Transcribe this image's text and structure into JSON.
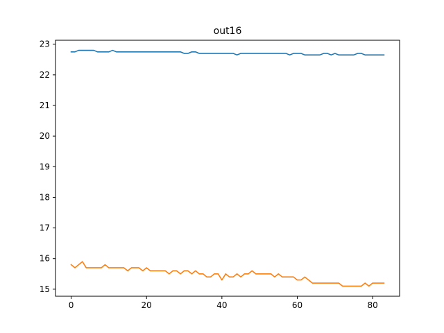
{
  "chart_data": {
    "type": "line",
    "title": "out16",
    "xlabel": "",
    "ylabel": "",
    "xlim": [
      -4.15,
      87.15
    ],
    "ylim": [
      14.77,
      23.13
    ],
    "xticks": [
      0,
      20,
      40,
      60,
      80
    ],
    "yticks": [
      15,
      16,
      17,
      18,
      19,
      20,
      21,
      22,
      23
    ],
    "grid": false,
    "legend": "none",
    "series": [
      {
        "color": "#1f77b4",
        "x": [
          0,
          1,
          2,
          3,
          4,
          5,
          6,
          7,
          8,
          9,
          10,
          11,
          12,
          13,
          14,
          15,
          16,
          17,
          18,
          19,
          20,
          21,
          22,
          23,
          24,
          25,
          26,
          27,
          28,
          29,
          30,
          31,
          32,
          33,
          34,
          35,
          36,
          37,
          38,
          39,
          40,
          41,
          42,
          43,
          44,
          45,
          46,
          47,
          48,
          49,
          50,
          51,
          52,
          53,
          54,
          55,
          56,
          57,
          58,
          59,
          60,
          61,
          62,
          63,
          64,
          65,
          66,
          67,
          68,
          69,
          70,
          71,
          72,
          73,
          74,
          75,
          76,
          77,
          78,
          79,
          80,
          81,
          82,
          83
        ],
        "values": [
          22.75,
          22.75,
          22.8,
          22.8,
          22.8,
          22.8,
          22.8,
          22.75,
          22.75,
          22.75,
          22.75,
          22.8,
          22.75,
          22.75,
          22.75,
          22.75,
          22.75,
          22.75,
          22.75,
          22.75,
          22.75,
          22.75,
          22.75,
          22.75,
          22.75,
          22.75,
          22.75,
          22.75,
          22.75,
          22.75,
          22.7,
          22.7,
          22.75,
          22.75,
          22.7,
          22.7,
          22.7,
          22.7,
          22.7,
          22.7,
          22.7,
          22.7,
          22.7,
          22.7,
          22.65,
          22.7,
          22.7,
          22.7,
          22.7,
          22.7,
          22.7,
          22.7,
          22.7,
          22.7,
          22.7,
          22.7,
          22.7,
          22.7,
          22.65,
          22.7,
          22.7,
          22.7,
          22.65,
          22.65,
          22.65,
          22.65,
          22.65,
          22.7,
          22.7,
          22.65,
          22.7,
          22.65,
          22.65,
          22.65,
          22.65,
          22.65,
          22.7,
          22.7,
          22.65,
          22.65,
          22.65,
          22.65,
          22.65,
          22.65
        ]
      },
      {
        "color": "#ff7f0e",
        "x": [
          0,
          1,
          2,
          3,
          4,
          5,
          6,
          7,
          8,
          9,
          10,
          11,
          12,
          13,
          14,
          15,
          16,
          17,
          18,
          19,
          20,
          21,
          22,
          23,
          24,
          25,
          26,
          27,
          28,
          29,
          30,
          31,
          32,
          33,
          34,
          35,
          36,
          37,
          38,
          39,
          40,
          41,
          42,
          43,
          44,
          45,
          46,
          47,
          48,
          49,
          50,
          51,
          52,
          53,
          54,
          55,
          56,
          57,
          58,
          59,
          60,
          61,
          62,
          63,
          64,
          65,
          66,
          67,
          68,
          69,
          70,
          71,
          72,
          73,
          74,
          75,
          76,
          77,
          78,
          79,
          80,
          81,
          82,
          83
        ],
        "values": [
          15.8,
          15.7,
          15.8,
          15.9,
          15.7,
          15.7,
          15.7,
          15.7,
          15.7,
          15.8,
          15.7,
          15.7,
          15.7,
          15.7,
          15.7,
          15.6,
          15.7,
          15.7,
          15.7,
          15.6,
          15.7,
          15.6,
          15.6,
          15.6,
          15.6,
          15.6,
          15.5,
          15.6,
          15.6,
          15.5,
          15.6,
          15.6,
          15.5,
          15.6,
          15.5,
          15.5,
          15.4,
          15.4,
          15.5,
          15.5,
          15.3,
          15.5,
          15.4,
          15.4,
          15.5,
          15.4,
          15.5,
          15.5,
          15.6,
          15.5,
          15.5,
          15.5,
          15.5,
          15.5,
          15.4,
          15.5,
          15.4,
          15.4,
          15.4,
          15.4,
          15.3,
          15.3,
          15.4,
          15.3,
          15.2,
          15.2,
          15.2,
          15.2,
          15.2,
          15.2,
          15.2,
          15.2,
          15.1,
          15.1,
          15.1,
          15.1,
          15.1,
          15.1,
          15.2,
          15.1,
          15.2,
          15.2,
          15.2,
          15.2
        ]
      }
    ]
  }
}
